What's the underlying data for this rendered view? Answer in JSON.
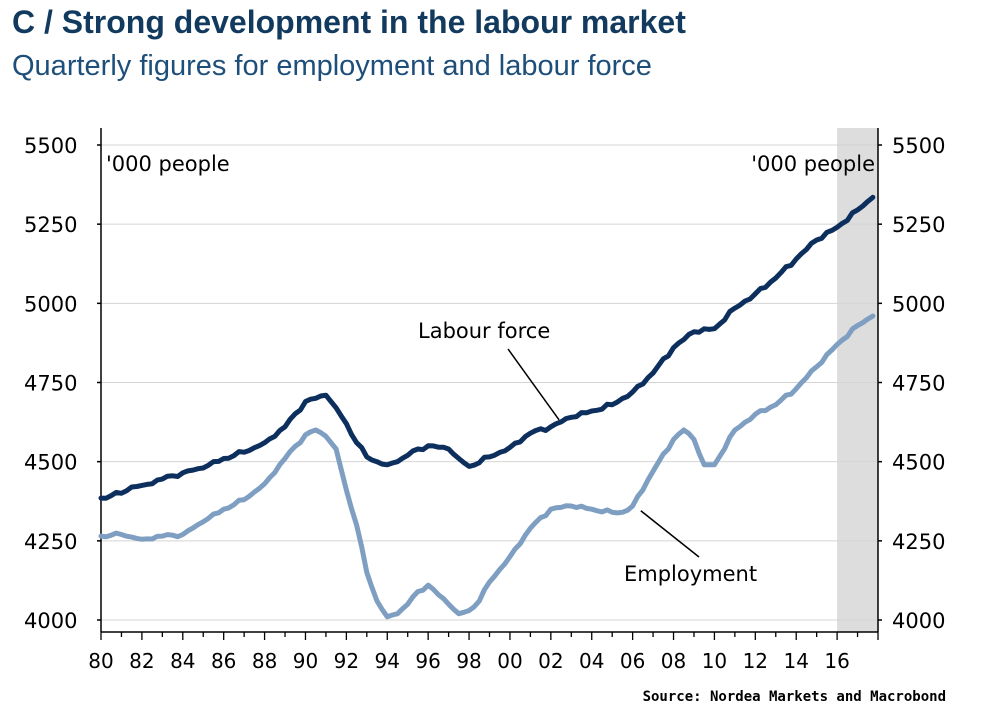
{
  "chart_data": {
    "type": "line",
    "title": "C / Strong development in the labour market",
    "subtitle": "Quarterly figures for employment and labour force",
    "ylabel_left": "'000 people",
    "ylabel_right": "'000 people",
    "ylim": [
      4000,
      5500
    ],
    "yticks": [
      4000,
      4250,
      4500,
      4750,
      5000,
      5250,
      5500
    ],
    "ytick_labels": [
      "4000",
      "4250",
      "4500",
      "4750",
      "5000",
      "5250",
      "5500"
    ],
    "xlim": [
      1980,
      2018
    ],
    "xticks": [
      1980,
      1982,
      1984,
      1986,
      1988,
      1990,
      1992,
      1994,
      1996,
      1998,
      2000,
      2002,
      2004,
      2006,
      2008,
      2010,
      2012,
      2014,
      2016
    ],
    "xtick_labels": [
      "80",
      "82",
      "84",
      "86",
      "88",
      "90",
      "92",
      "94",
      "96",
      "98",
      "00",
      "02",
      "04",
      "06",
      "08",
      "10",
      "12",
      "14",
      "16"
    ],
    "forecast_band": [
      2016,
      2018
    ],
    "series": [
      {
        "name": "Labour force",
        "color": "#0d2f5e",
        "x": [
          1980,
          1981,
          1981.5,
          1982,
          1983,
          1984,
          1985,
          1986,
          1987,
          1988,
          1989,
          1990,
          1990.5,
          1991,
          1991.5,
          1992,
          1992.5,
          1993,
          1993.5,
          1994,
          1994.5,
          1995,
          1995.5,
          1996,
          1997,
          1997.5,
          1998,
          1999,
          2000,
          2001,
          2002,
          2003,
          2004,
          2005,
          2006,
          2007,
          2008,
          2009,
          2010,
          2011,
          2012,
          2013,
          2014,
          2015,
          2016,
          2017,
          2017.75
        ],
        "values": [
          4385,
          4400,
          4420,
          4425,
          4445,
          4465,
          4480,
          4510,
          4530,
          4560,
          4610,
          4690,
          4700,
          4710,
          4670,
          4620,
          4560,
          4515,
          4500,
          4490,
          4500,
          4520,
          4540,
          4550,
          4540,
          4510,
          4485,
          4515,
          4545,
          4590,
          4610,
          4640,
          4660,
          4680,
          4720,
          4780,
          4860,
          4910,
          4920,
          4985,
          5030,
          5080,
          5140,
          5200,
          5240,
          5295,
          5335
        ]
      },
      {
        "name": "Employment",
        "color": "#7f9fc2",
        "x": [
          1980,
          1981,
          1982,
          1983,
          1984,
          1985,
          1986,
          1987,
          1988,
          1989,
          1990,
          1990.5,
          1991,
          1991.5,
          1992,
          1992.5,
          1993,
          1993.5,
          1994,
          1994.5,
          1995,
          1995.5,
          1996,
          1996.5,
          1997,
          1997.5,
          1998,
          1998.5,
          1999,
          2000,
          2001,
          2002,
          2003,
          2004,
          2005,
          2005.5,
          2006,
          2007,
          2008,
          2008.5,
          2009,
          2009.5,
          2010,
          2011,
          2012,
          2013,
          2014,
          2015,
          2016,
          2017,
          2017.75
        ],
        "values": [
          4265,
          4270,
          4255,
          4265,
          4270,
          4310,
          4350,
          4380,
          4430,
          4510,
          4585,
          4600,
          4580,
          4540,
          4410,
          4300,
          4150,
          4060,
          4010,
          4020,
          4050,
          4090,
          4110,
          4080,
          4050,
          4020,
          4030,
          4060,
          4120,
          4200,
          4290,
          4350,
          4360,
          4350,
          4340,
          4340,
          4360,
          4470,
          4570,
          4600,
          4570,
          4490,
          4490,
          4600,
          4650,
          4680,
          4730,
          4800,
          4870,
          4930,
          4960
        ]
      }
    ],
    "annotations": [
      {
        "text": "Labour force",
        "series": "Labour force"
      },
      {
        "text": "Employment",
        "series": "Employment"
      }
    ],
    "source": "Source: Nordea Markets and Macrobond"
  }
}
